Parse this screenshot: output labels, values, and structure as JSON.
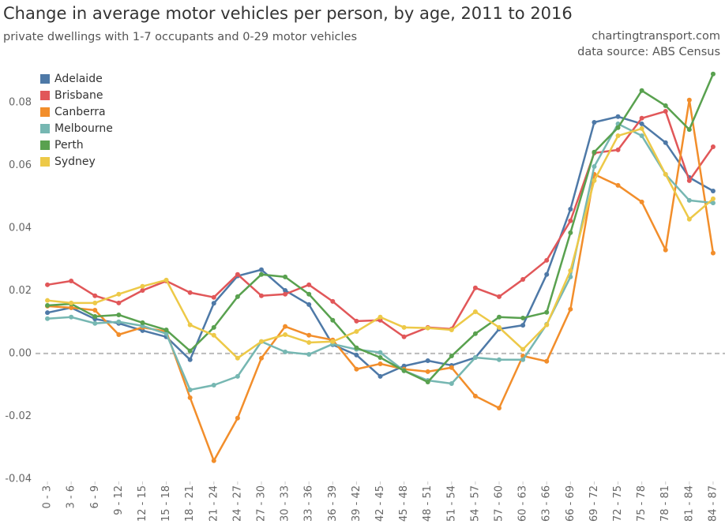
{
  "chart_data": {
    "type": "line",
    "title": "Change in average motor vehicles per person, by age, 2011 to 2016",
    "subtitle": "private dwellings with 1-7 occupants and 0-29 motor vehicles",
    "annotations": [
      "chartingtransport.com",
      "data source: ABS Census"
    ],
    "categories": [
      "0 - 3",
      "3 - 6",
      "6 - 9",
      "9 - 12",
      "12 - 15",
      "15 - 18",
      "18 - 21",
      "21 - 24",
      "24 - 27",
      "27 - 30",
      "30 - 33",
      "33 - 36",
      "36 - 39",
      "39 - 42",
      "42 - 45",
      "45 - 48",
      "48 - 51",
      "51 - 54",
      "54 - 57",
      "57 - 60",
      "60 - 63",
      "63 - 66",
      "66 - 69",
      "69 - 72",
      "72 - 75",
      "75 - 78",
      "78 - 81",
      "81 - 84",
      "84 - 87"
    ],
    "series": [
      {
        "name": "Adelaide",
        "color": "#4e79a7",
        "values": [
          0.013,
          0.0146,
          0.011,
          0.0096,
          0.0073,
          0.0053,
          -0.002,
          0.016,
          0.0247,
          0.0267,
          0.0201,
          0.0156,
          0.0028,
          -0.0005,
          -0.0073,
          -0.004,
          -0.0023,
          -0.0038,
          -0.0013,
          0.0078,
          0.009,
          0.0252,
          0.046,
          0.0737,
          0.0755,
          0.0732,
          0.0672,
          0.0561,
          0.0518
        ]
      },
      {
        "name": "Brisbane",
        "color": "#e15759",
        "values": [
          0.0219,
          0.0231,
          0.0184,
          0.0161,
          0.0201,
          0.0231,
          0.0194,
          0.0179,
          0.0252,
          0.0184,
          0.0189,
          0.0219,
          0.0166,
          0.0103,
          0.0106,
          0.0053,
          0.0083,
          0.0078,
          0.0209,
          0.0181,
          0.0236,
          0.0297,
          0.0423,
          0.0639,
          0.0649,
          0.075,
          0.0772,
          0.0551,
          0.0659
        ]
      },
      {
        "name": "Canberra",
        "color": "#f28e2b",
        "values": [
          0.0151,
          0.0146,
          0.0138,
          0.006,
          0.0083,
          0.007,
          -0.0141,
          -0.0342,
          -0.0206,
          -0.0015,
          0.0086,
          0.0058,
          0.0043,
          -0.005,
          -0.0033,
          -0.005,
          -0.0058,
          -0.0045,
          -0.0136,
          -0.0174,
          -0.0008,
          -0.0025,
          0.0141,
          0.0571,
          0.0536,
          0.0483,
          0.033,
          0.0808,
          0.032
        ]
      },
      {
        "name": "Melbourne",
        "color": "#76b7b2",
        "values": [
          0.0111,
          0.0116,
          0.0096,
          0.0101,
          0.0088,
          0.0063,
          -0.0116,
          -0.0101,
          -0.0073,
          0.0038,
          0.0005,
          -0.0003,
          0.003,
          0.0013,
          0.0003,
          -0.0055,
          -0.0086,
          -0.0096,
          -0.0013,
          -0.002,
          -0.002,
          0.0093,
          0.0244,
          0.0596,
          0.0732,
          0.0694,
          0.0571,
          0.0488,
          0.048
        ]
      },
      {
        "name": "Perth",
        "color": "#59a14f",
        "values": [
          0.0153,
          0.0158,
          0.0118,
          0.0123,
          0.0098,
          0.0075,
          0.0008,
          0.0083,
          0.0181,
          0.0252,
          0.0244,
          0.0189,
          0.0106,
          0.0018,
          -0.0013,
          -0.0055,
          -0.0091,
          -0.0008,
          0.0063,
          0.0116,
          0.0113,
          0.0131,
          0.0385,
          0.0642,
          0.072,
          0.0838,
          0.079,
          0.0714,
          0.0891
        ]
      },
      {
        "name": "Sydney",
        "color": "#edc948",
        "values": [
          0.0169,
          0.0161,
          0.0161,
          0.0189,
          0.0214,
          0.0234,
          0.0091,
          0.0058,
          -0.0015,
          0.0038,
          0.006,
          0.0035,
          0.0038,
          0.007,
          0.0116,
          0.0083,
          0.0081,
          0.0075,
          0.0133,
          0.0083,
          0.0013,
          0.0091,
          0.0264,
          0.0551,
          0.0694,
          0.0717,
          0.0571,
          0.0428,
          0.0493
        ]
      }
    ],
    "ylim": [
      -0.0408,
      0.0913
    ],
    "yticks": [
      -0.04,
      -0.02,
      {
        "value": 0,
        "label": "0.00"
      },
      0.02,
      0.04,
      0.06,
      0.08
    ],
    "grid": false,
    "zero_line": true,
    "legend": "top-left"
  }
}
